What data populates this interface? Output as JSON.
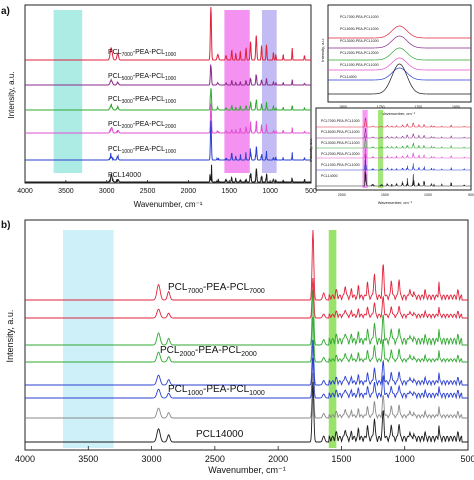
{
  "figure": {
    "panels": [
      {
        "id": "a",
        "panel_label": "a)",
        "xlabel": "Wavenumber, cm⁻¹",
        "ylabel": "Intensity, a.u.",
        "x_ticks": [
          "4000",
          "3500",
          "3000",
          "2500",
          "2000",
          "1500",
          "1000",
          "500"
        ],
        "labels": [
          {
            "id": "pcl7000",
            "pre": "PCL",
            "sub1": "7000",
            "mid": "-PEA-PCL",
            "sub2": "1000"
          },
          {
            "id": "pcl5000",
            "pre": "PCL",
            "sub1": "5000",
            "mid": "-PEA-PCL",
            "sub2": "1000"
          },
          {
            "id": "pcl3000",
            "pre": "PCL",
            "sub1": "3000",
            "mid": "-PEA-PCL",
            "sub2": "1000"
          },
          {
            "id": "pcl2000",
            "pre": "PCL",
            "sub1": "2000",
            "mid": "-PEA-PCL",
            "sub2": "2000"
          },
          {
            "id": "pcl1000",
            "pre": "PCL",
            "sub1": "1000",
            "mid": "-PEA-PCL",
            "sub2": "1000"
          },
          {
            "id": "pcl14000",
            "pre": "PCL14000",
            "sub1": "",
            "mid": "",
            "sub2": ""
          }
        ]
      },
      {
        "id": "b",
        "panel_label": "b)",
        "xlabel": "Wavenumber, cm⁻¹",
        "ylabel": "Intensity, a.u.",
        "x_ticks": [
          "4000",
          "3500",
          "3000",
          "2500",
          "2000",
          "1500",
          "1000",
          "500"
        ],
        "labels": [
          {
            "id": "pcl7000",
            "pre": "PCL",
            "sub1": "7000",
            "mid": "-PEA-PCL",
            "sub2": "7000"
          },
          {
            "id": "pcl2000",
            "pre": "PCL",
            "sub1": "2000",
            "mid": "-PEA-PCL",
            "sub2": "2000"
          },
          {
            "id": "pcl1000",
            "pre": "PCL",
            "sub1": "1000",
            "mid": "-PEA-PCL",
            "sub2": "1000"
          },
          {
            "id": "pcl14000",
            "pre": "PCL14000",
            "sub1": "",
            "mid": "",
            "sub2": ""
          }
        ]
      }
    ],
    "inset_top": {
      "legend": [
        "PCL7000-PEA-PCL1000",
        "PCL5000-PEA-PCL1000",
        "PCL3000-PEA-PCL1000",
        "PCL2000-PEA-PCL2000",
        "PCL1000-PEA-PCL1000",
        "PCL14000"
      ],
      "x_ticks": [
        "1800",
        "1750",
        "1700",
        "1650"
      ],
      "xlabel": "Wavenumber, cm⁻¹",
      "ylabel": "Intensity, a.u."
    },
    "inset_bottom": {
      "legend": [
        "PCL7000-PEA-PCL1000",
        "PCL5000-PEA-PCL1000",
        "PCL3000-PEA-PCL1000",
        "PCL2000-PEA-PCL2000",
        "PCL1000-PEA-PCL1000",
        "PCL14000"
      ],
      "x_ticks": [
        "2000",
        "1500",
        "1000",
        "500"
      ],
      "xlabel": "Wavenumber, cm⁻¹",
      "ylabel": "Intensity, a.u."
    }
  },
  "colors": {
    "pcl7000": "#e0223a",
    "pcl5000": "#8a2a8a",
    "pcl3000": "#2fa82f",
    "pcl2000": "#e04fd0",
    "pcl1000": "#2a3fd0",
    "pcl14000": "#1a1a1a",
    "gray": "#8a8a8a",
    "band_cyan": "#9fe8e0",
    "band_lightblue": "#c8eef8",
    "band_magenta": "#f27ff0",
    "band_lavender": "#b8b0f2",
    "band_green": "#8ee05a"
  },
  "chart_data": [
    {
      "type": "line",
      "panel": "a",
      "xlabel": "Wavenumber, cm⁻¹",
      "ylabel": "Intensity, a.u.",
      "xlim": [
        4000,
        500
      ],
      "x_reversed": true,
      "highlight_bands": [
        [
          3650,
          3300
        ],
        [
          1560,
          1250
        ],
        [
          1100,
          920
        ]
      ],
      "series": [
        {
          "name": "PCL7000-PEA-PCL1000",
          "color_key": "pcl7000"
        },
        {
          "name": "PCL5000-PEA-PCL1000",
          "color_key": "pcl5000"
        },
        {
          "name": "PCL3000-PEA-PCL1000",
          "color_key": "pcl3000"
        },
        {
          "name": "PCL2000-PEA-PCL2000",
          "color_key": "pcl2000"
        },
        {
          "name": "PCL1000-PEA-PCL1000",
          "color_key": "pcl1000"
        },
        {
          "name": "PCL14000",
          "color_key": "pcl14000"
        }
      ],
      "peaks_cm": [
        2945,
        2865,
        1725,
        1640,
        1540,
        1470,
        1365,
        1295,
        1240,
        1170,
        1105,
        1045,
        960,
        730
      ]
    },
    {
      "type": "line",
      "panel": "b",
      "xlabel": "Wavenumber, cm⁻¹",
      "ylabel": "Intensity, a.u.",
      "xlim": [
        4000,
        500
      ],
      "x_reversed": true,
      "highlight_bands": [
        [
          3700,
          3300
        ],
        [
          1600,
          1540
        ]
      ],
      "series_count": 8,
      "series": [
        {
          "name": "PCL7000-PEA-PCL7000",
          "color_key": "pcl7000"
        },
        {
          "name": "PCL2000-PEA-PCL2000",
          "color_key": "pcl3000"
        },
        {
          "name": "PCL1000-PEA-PCL1000",
          "color_key": "pcl1000"
        },
        {
          "name": "PCL14000",
          "color_key": "pcl14000"
        }
      ]
    }
  ]
}
